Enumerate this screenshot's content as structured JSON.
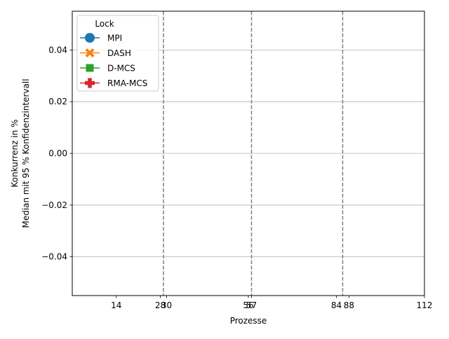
{
  "chart_data": {
    "type": "line",
    "xlabel": "Prozesse",
    "ylabel_lines": [
      "Konkurrenz in %",
      "Median mit 95 % Konfidenzintervall"
    ],
    "xlim": [
      0,
      112
    ],
    "ylim": [
      -0.055,
      0.055
    ],
    "x_ticks": [
      14,
      28,
      30,
      56,
      57,
      84,
      88,
      112
    ],
    "x_tick_labels": [
      "14",
      "28",
      "30",
      "56",
      "57",
      "84",
      "88",
      "112"
    ],
    "y_ticks": [
      -0.04,
      -0.02,
      0.0,
      0.02,
      0.04
    ],
    "y_tick_labels": [
      "−0.04",
      "−0.02",
      "0.00",
      "0.02",
      "0.04"
    ],
    "grid": "horizontal",
    "vlines": [
      29,
      57,
      86
    ],
    "vline_color": "#808080",
    "legend_title": "Lock",
    "legend_position": "top-left",
    "series": [
      {
        "name": "MPI",
        "color": "#1f77b4",
        "marker": "circle",
        "x": [],
        "y": []
      },
      {
        "name": "DASH",
        "color": "#ff7f0e",
        "marker": "x-filled",
        "x": [],
        "y": []
      },
      {
        "name": "D-MCS",
        "color": "#2ca02c",
        "marker": "square",
        "x": [],
        "y": []
      },
      {
        "name": "RMA-MCS",
        "color": "#d62728",
        "marker": "plus-filled",
        "x": [],
        "y": []
      }
    ]
  }
}
